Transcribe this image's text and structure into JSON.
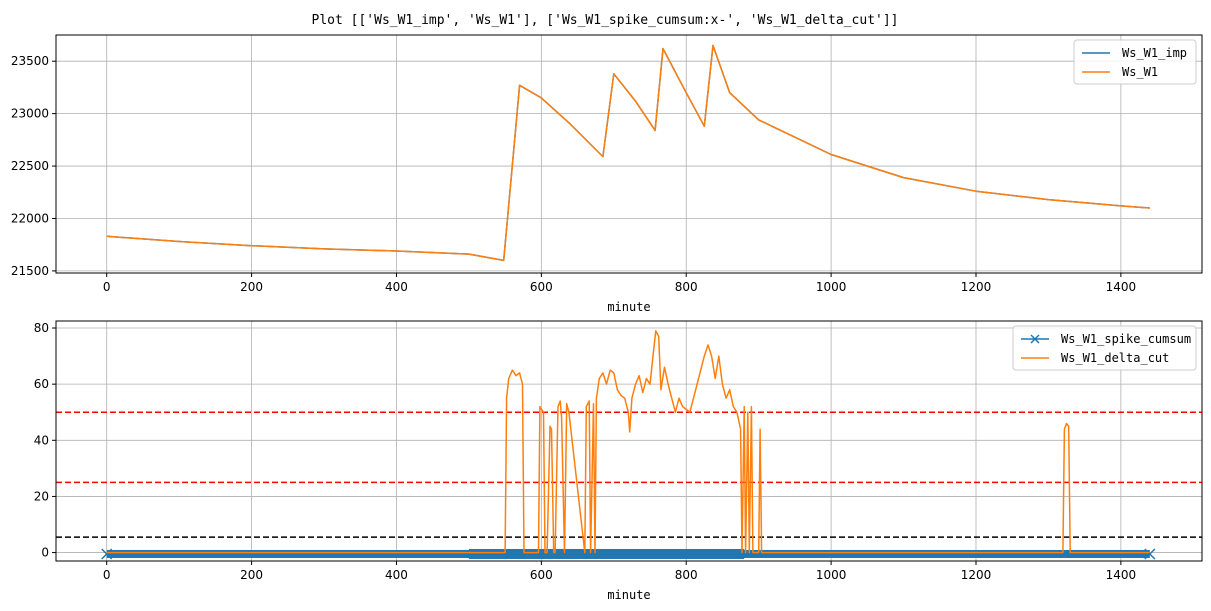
{
  "title": "Plot [['Ws_W1_imp', 'Ws_W1'], ['Ws_W1_spike_cumsum:x-', 'Ws_W1_delta_cut']]",
  "colors": {
    "blue": "#1f77b4",
    "orange": "#ff7f0e",
    "red": "#ff0000",
    "black": "#000000",
    "grid": "#b0b0b0"
  },
  "chart_data": [
    {
      "type": "line",
      "xlabel": "minute",
      "ylabel": "",
      "xlim": [
        -70,
        1512
      ],
      "ylim": [
        21480,
        23750
      ],
      "xticks": [
        0,
        200,
        400,
        600,
        800,
        1000,
        1200,
        1400
      ],
      "yticks": [
        21500,
        22000,
        22500,
        23000,
        23500
      ],
      "grid": true,
      "legend": "upper right",
      "series": [
        {
          "name": "Ws_W1_imp",
          "color": "#1f77b4",
          "x": [
            0,
            100,
            200,
            300,
            400,
            500,
            548,
            570,
            600,
            640,
            685,
            700,
            730,
            757,
            768,
            800,
            825,
            837,
            860,
            900,
            1000,
            1100,
            1200,
            1300,
            1400,
            1440
          ],
          "y": [
            21830,
            21780,
            21740,
            21710,
            21690,
            21660,
            21600,
            23270,
            23150,
            22900,
            22590,
            23380,
            23120,
            22840,
            23620,
            23200,
            22880,
            23650,
            23200,
            22940,
            22610,
            22390,
            22260,
            22180,
            22120,
            22100
          ]
        },
        {
          "name": "Ws_W1",
          "color": "#ff7f0e",
          "x": [
            0,
            100,
            200,
            300,
            400,
            500,
            548,
            570,
            600,
            640,
            685,
            700,
            730,
            757,
            768,
            800,
            825,
            837,
            860,
            900,
            1000,
            1100,
            1200,
            1300,
            1400,
            1440
          ],
          "y": [
            21830,
            21780,
            21740,
            21710,
            21690,
            21660,
            21600,
            23270,
            23150,
            22900,
            22590,
            23380,
            23120,
            22840,
            23620,
            23200,
            22880,
            23650,
            23200,
            22940,
            22610,
            22390,
            22260,
            22180,
            22120,
            22100
          ]
        }
      ]
    },
    {
      "type": "line",
      "xlabel": "minute",
      "ylabel": "",
      "xlim": [
        -70,
        1512
      ],
      "ylim": [
        -3,
        82.5
      ],
      "xticks": [
        0,
        200,
        400,
        600,
        800,
        1000,
        1200,
        1400
      ],
      "yticks": [
        0,
        20,
        40,
        60,
        80
      ],
      "grid": true,
      "legend": "upper right",
      "hlines": [
        {
          "y": 50,
          "color": "#ff0000"
        },
        {
          "y": 25,
          "color": "#ff0000"
        },
        {
          "y": 5.5,
          "color": "#000000"
        }
      ],
      "series": [
        {
          "name": "Ws_W1_spike_cumsum",
          "color": "#1f77b4",
          "marker": "x",
          "x": [
            0,
            1440
          ],
          "y": [
            -0.5,
            -0.5
          ]
        },
        {
          "name": "Ws_W1_delta_cut",
          "color": "#ff7f0e",
          "x": [
            0,
            550,
            552,
            555,
            560,
            565,
            570,
            574,
            576,
            596,
            598,
            603,
            605,
            608,
            612,
            614,
            617,
            619,
            623,
            626,
            628,
            632,
            635,
            638,
            660,
            662,
            666,
            668,
            672,
            674,
            676,
            680,
            685,
            690,
            695,
            700,
            705,
            710,
            715,
            720,
            722,
            725,
            730,
            735,
            740,
            745,
            750,
            755,
            758,
            762,
            765,
            770,
            775,
            780,
            785,
            790,
            795,
            800,
            805,
            810,
            815,
            820,
            825,
            830,
            835,
            840,
            845,
            850,
            855,
            860,
            865,
            870,
            875,
            877,
            880,
            882,
            885,
            887,
            890,
            892,
            895,
            900,
            902,
            904,
            906,
            1320,
            1322,
            1325,
            1328,
            1330,
            1440
          ],
          "y": [
            0,
            0,
            55,
            62,
            65,
            63,
            64,
            60,
            0,
            0,
            52,
            50,
            0,
            0,
            45,
            44,
            0,
            0,
            52,
            54,
            48,
            0,
            53,
            50,
            0,
            52,
            54,
            0,
            53,
            0,
            55,
            62,
            64,
            60,
            65,
            64,
            58,
            56,
            55,
            50,
            43,
            55,
            60,
            63,
            57,
            62,
            60,
            72,
            79,
            77,
            58,
            66,
            60,
            55,
            50,
            55,
            52,
            51,
            50,
            55,
            60,
            65,
            70,
            74,
            70,
            62,
            70,
            60,
            55,
            58,
            52,
            50,
            44,
            0,
            52,
            0,
            50,
            0,
            52,
            0,
            0,
            0,
            44,
            0,
            0,
            0,
            44,
            46,
            45,
            0,
            0
          ]
        }
      ]
    }
  ]
}
